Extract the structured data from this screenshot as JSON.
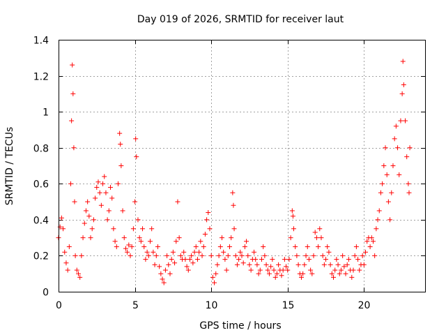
{
  "chart_data": {
    "type": "scatter",
    "title": "Day 019 of 2026, SRMTID for receiver laut",
    "xlabel": "GPS time / hours",
    "ylabel": "SRMTID / TECUs",
    "xlim": [
      0,
      24
    ],
    "ylim": [
      0,
      1.4
    ],
    "xticks": [
      0,
      5,
      10,
      15,
      20
    ],
    "xtick_labels": [
      "0",
      "5",
      "10",
      "15",
      "20"
    ],
    "yticks": [
      0,
      0.2,
      0.4,
      0.6,
      0.8,
      1.0,
      1.2,
      1.4
    ],
    "ytick_labels": [
      "0",
      "0.2",
      "0.4",
      "0.6",
      "0.8",
      "1",
      "1.2",
      "1.4"
    ],
    "grid": true,
    "marker": "+",
    "marker_color": "#ff0000",
    "series": [
      {
        "name": "SRMTID",
        "points": [
          [
            0.0,
            0.3
          ],
          [
            0.1,
            0.36
          ],
          [
            0.2,
            0.41
          ],
          [
            0.3,
            0.35
          ],
          [
            0.4,
            0.22
          ],
          [
            0.5,
            0.16
          ],
          [
            0.6,
            0.12
          ],
          [
            0.7,
            0.25
          ],
          [
            0.8,
            0.6
          ],
          [
            0.85,
            0.95
          ],
          [
            0.9,
            1.26
          ],
          [
            0.95,
            1.1
          ],
          [
            1.0,
            0.8
          ],
          [
            1.05,
            0.5
          ],
          [
            1.1,
            0.2
          ],
          [
            1.2,
            0.12
          ],
          [
            1.3,
            0.1
          ],
          [
            1.4,
            0.08
          ],
          [
            1.5,
            0.2
          ],
          [
            1.6,
            0.3
          ],
          [
            1.7,
            0.38
          ],
          [
            1.8,
            0.45
          ],
          [
            1.9,
            0.5
          ],
          [
            2.0,
            0.42
          ],
          [
            2.1,
            0.3
          ],
          [
            2.2,
            0.35
          ],
          [
            2.3,
            0.4
          ],
          [
            2.4,
            0.52
          ],
          [
            2.5,
            0.58
          ],
          [
            2.6,
            0.61
          ],
          [
            2.7,
            0.55
          ],
          [
            2.8,
            0.48
          ],
          [
            2.9,
            0.6
          ],
          [
            3.0,
            0.64
          ],
          [
            3.1,
            0.55
          ],
          [
            3.2,
            0.4
          ],
          [
            3.3,
            0.45
          ],
          [
            3.4,
            0.58
          ],
          [
            3.5,
            0.52
          ],
          [
            3.6,
            0.35
          ],
          [
            3.7,
            0.28
          ],
          [
            3.8,
            0.25
          ],
          [
            3.9,
            0.6
          ],
          [
            4.0,
            0.88
          ],
          [
            4.05,
            0.82
          ],
          [
            4.1,
            0.7
          ],
          [
            4.2,
            0.45
          ],
          [
            4.3,
            0.3
          ],
          [
            4.4,
            0.24
          ],
          [
            4.5,
            0.22
          ],
          [
            4.6,
            0.26
          ],
          [
            4.7,
            0.2
          ],
          [
            4.8,
            0.25
          ],
          [
            4.9,
            0.35
          ],
          [
            5.0,
            0.5
          ],
          [
            5.05,
            0.85
          ],
          [
            5.1,
            0.75
          ],
          [
            5.2,
            0.4
          ],
          [
            5.3,
            0.3
          ],
          [
            5.4,
            0.28
          ],
          [
            5.5,
            0.35
          ],
          [
            5.6,
            0.25
          ],
          [
            5.7,
            0.18
          ],
          [
            5.8,
            0.22
          ],
          [
            5.9,
            0.2
          ],
          [
            6.0,
            0.28
          ],
          [
            6.1,
            0.35
          ],
          [
            6.2,
            0.22
          ],
          [
            6.3,
            0.15
          ],
          [
            6.4,
            0.2
          ],
          [
            6.5,
            0.25
          ],
          [
            6.6,
            0.14
          ],
          [
            6.7,
            0.1
          ],
          [
            6.8,
            0.07
          ],
          [
            6.9,
            0.05
          ],
          [
            7.0,
            0.12
          ],
          [
            7.1,
            0.2
          ],
          [
            7.2,
            0.15
          ],
          [
            7.3,
            0.1
          ],
          [
            7.4,
            0.18
          ],
          [
            7.5,
            0.22
          ],
          [
            7.6,
            0.16
          ],
          [
            7.7,
            0.28
          ],
          [
            7.8,
            0.5
          ],
          [
            7.9,
            0.3
          ],
          [
            8.0,
            0.2
          ],
          [
            8.1,
            0.18
          ],
          [
            8.2,
            0.22
          ],
          [
            8.3,
            0.18
          ],
          [
            8.4,
            0.14
          ],
          [
            8.5,
            0.12
          ],
          [
            8.6,
            0.18
          ],
          [
            8.7,
            0.2
          ],
          [
            8.8,
            0.16
          ],
          [
            8.9,
            0.22
          ],
          [
            9.0,
            0.25
          ],
          [
            9.1,
            0.18
          ],
          [
            9.2,
            0.22
          ],
          [
            9.3,
            0.28
          ],
          [
            9.4,
            0.2
          ],
          [
            9.5,
            0.25
          ],
          [
            9.6,
            0.32
          ],
          [
            9.7,
            0.4
          ],
          [
            9.8,
            0.44
          ],
          [
            9.9,
            0.35
          ],
          [
            10.0,
            0.2
          ],
          [
            10.1,
            0.08
          ],
          [
            10.2,
            0.05
          ],
          [
            10.3,
            0.1
          ],
          [
            10.4,
            0.15
          ],
          [
            10.5,
            0.2
          ],
          [
            10.6,
            0.25
          ],
          [
            10.7,
            0.3
          ],
          [
            10.8,
            0.22
          ],
          [
            10.9,
            0.18
          ],
          [
            11.0,
            0.12
          ],
          [
            11.1,
            0.2
          ],
          [
            11.2,
            0.25
          ],
          [
            11.3,
            0.3
          ],
          [
            11.4,
            0.55
          ],
          [
            11.45,
            0.48
          ],
          [
            11.5,
            0.35
          ],
          [
            11.6,
            0.2
          ],
          [
            11.7,
            0.15
          ],
          [
            11.8,
            0.18
          ],
          [
            11.9,
            0.22
          ],
          [
            12.0,
            0.2
          ],
          [
            12.1,
            0.16
          ],
          [
            12.2,
            0.25
          ],
          [
            12.3,
            0.28
          ],
          [
            12.4,
            0.2
          ],
          [
            12.5,
            0.15
          ],
          [
            12.6,
            0.12
          ],
          [
            12.7,
            0.18
          ],
          [
            12.8,
            0.22
          ],
          [
            12.9,
            0.18
          ],
          [
            13.0,
            0.15
          ],
          [
            13.1,
            0.1
          ],
          [
            13.2,
            0.12
          ],
          [
            13.3,
            0.18
          ],
          [
            13.4,
            0.25
          ],
          [
            13.5,
            0.2
          ],
          [
            13.6,
            0.15
          ],
          [
            13.7,
            0.12
          ],
          [
            13.8,
            0.1
          ],
          [
            13.9,
            0.14
          ],
          [
            14.0,
            0.18
          ],
          [
            14.1,
            0.12
          ],
          [
            14.2,
            0.08
          ],
          [
            14.3,
            0.1
          ],
          [
            14.4,
            0.15
          ],
          [
            14.5,
            0.12
          ],
          [
            14.6,
            0.09
          ],
          [
            14.7,
            0.12
          ],
          [
            14.8,
            0.18
          ],
          [
            14.9,
            0.14
          ],
          [
            15.0,
            0.12
          ],
          [
            15.1,
            0.18
          ],
          [
            15.2,
            0.3
          ],
          [
            15.3,
            0.45
          ],
          [
            15.35,
            0.42
          ],
          [
            15.4,
            0.35
          ],
          [
            15.5,
            0.25
          ],
          [
            15.6,
            0.2
          ],
          [
            15.7,
            0.15
          ],
          [
            15.8,
            0.1
          ],
          [
            15.9,
            0.08
          ],
          [
            16.0,
            0.1
          ],
          [
            16.1,
            0.15
          ],
          [
            16.2,
            0.2
          ],
          [
            16.3,
            0.25
          ],
          [
            16.4,
            0.18
          ],
          [
            16.5,
            0.12
          ],
          [
            16.6,
            0.1
          ],
          [
            16.7,
            0.2
          ],
          [
            16.8,
            0.33
          ],
          [
            16.9,
            0.3
          ],
          [
            17.0,
            0.25
          ],
          [
            17.1,
            0.35
          ],
          [
            17.2,
            0.3
          ],
          [
            17.3,
            0.2
          ],
          [
            17.4,
            0.15
          ],
          [
            17.5,
            0.18
          ],
          [
            17.6,
            0.25
          ],
          [
            17.7,
            0.22
          ],
          [
            17.8,
            0.15
          ],
          [
            17.9,
            0.1
          ],
          [
            18.0,
            0.08
          ],
          [
            18.1,
            0.12
          ],
          [
            18.2,
            0.18
          ],
          [
            18.3,
            0.15
          ],
          [
            18.4,
            0.1
          ],
          [
            18.5,
            0.12
          ],
          [
            18.6,
            0.2
          ],
          [
            18.7,
            0.14
          ],
          [
            18.8,
            0.1
          ],
          [
            18.9,
            0.15
          ],
          [
            19.0,
            0.18
          ],
          [
            19.1,
            0.12
          ],
          [
            19.2,
            0.08
          ],
          [
            19.3,
            0.12
          ],
          [
            19.4,
            0.2
          ],
          [
            19.5,
            0.25
          ],
          [
            19.6,
            0.18
          ],
          [
            19.7,
            0.12
          ],
          [
            19.8,
            0.15
          ],
          [
            19.9,
            0.2
          ],
          [
            20.0,
            0.15
          ],
          [
            20.1,
            0.22
          ],
          [
            20.2,
            0.28
          ],
          [
            20.3,
            0.3
          ],
          [
            20.4,
            0.25
          ],
          [
            20.5,
            0.3
          ],
          [
            20.6,
            0.28
          ],
          [
            20.7,
            0.2
          ],
          [
            20.8,
            0.35
          ],
          [
            20.9,
            0.4
          ],
          [
            21.0,
            0.45
          ],
          [
            21.1,
            0.55
          ],
          [
            21.2,
            0.6
          ],
          [
            21.3,
            0.7
          ],
          [
            21.4,
            0.8
          ],
          [
            21.5,
            0.65
          ],
          [
            21.6,
            0.5
          ],
          [
            21.7,
            0.4
          ],
          [
            21.8,
            0.55
          ],
          [
            21.9,
            0.7
          ],
          [
            22.0,
            0.85
          ],
          [
            22.1,
            0.92
          ],
          [
            22.2,
            0.8
          ],
          [
            22.3,
            0.65
          ],
          [
            22.4,
            0.95
          ],
          [
            22.5,
            1.1
          ],
          [
            22.55,
            1.28
          ],
          [
            22.6,
            1.15
          ],
          [
            22.7,
            0.95
          ],
          [
            22.8,
            0.75
          ],
          [
            22.9,
            0.6
          ],
          [
            22.95,
            0.55
          ],
          [
            23.0,
            0.8
          ]
        ]
      }
    ]
  }
}
